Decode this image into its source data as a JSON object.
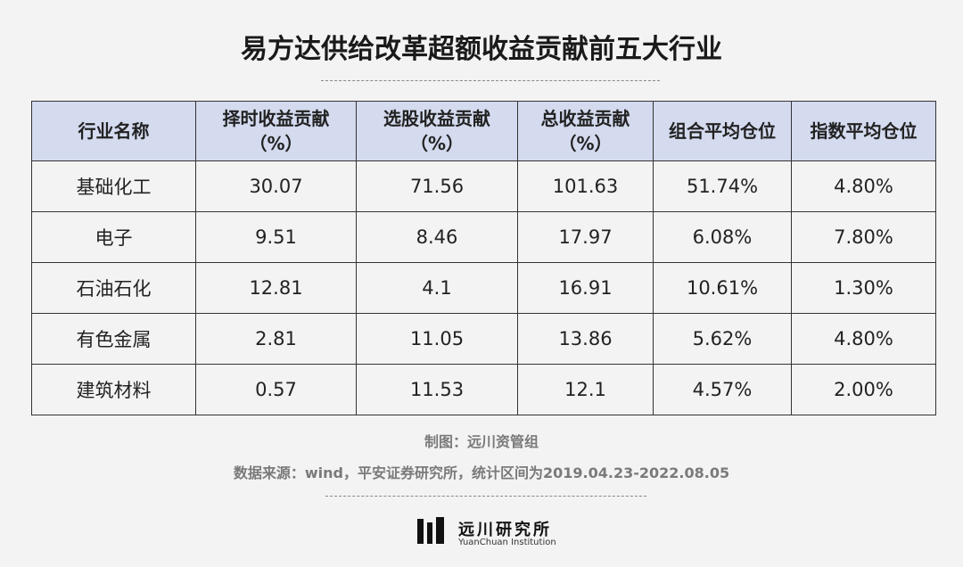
{
  "title": "易方达供给改革超额收益贡献前五大行业",
  "table": {
    "header": [
      [
        "行业名称"
      ],
      [
        "择时收益贡献",
        "（%）"
      ],
      [
        "选股收益贡献",
        "（%）"
      ],
      [
        "总收益贡献",
        "（%）"
      ],
      [
        "组合平均仓位"
      ],
      [
        "指数平均仓位"
      ]
    ],
    "rows": [
      [
        "基础化工",
        "30.07",
        "71.56",
        "101.63",
        "51.74%",
        "4.80%"
      ],
      [
        "电子",
        "9.51",
        "8.46",
        "17.97",
        "6.08%",
        "7.80%"
      ],
      [
        "石油石化",
        "12.81",
        "4.1",
        "16.91",
        "10.61%",
        "1.30%"
      ],
      [
        "有色金属",
        "2.81",
        "11.05",
        "13.86",
        "5.62%",
        "4.80%"
      ],
      [
        "建筑材料",
        "0.57",
        "11.53",
        "12.1",
        "4.57%",
        "2.00%"
      ]
    ]
  },
  "footer": {
    "maker": "制图：远川资管组",
    "source": "数据来源：wind，平安证券研究所，统计区间为2019.04.23-2022.08.05"
  },
  "logo": {
    "name": "远川研究所",
    "english": "YuanChuan Institution"
  }
}
